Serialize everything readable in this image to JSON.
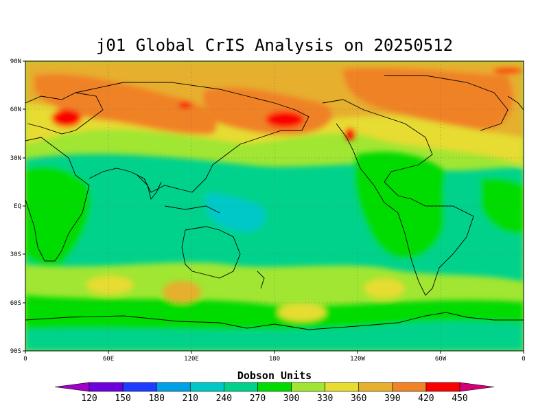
{
  "title": "j01 Global CrIS Analysis on 20250512",
  "units": "Dobson Units",
  "map": {
    "projection": "cylindrical-equidistant",
    "lon_range": [
      0,
      360
    ],
    "lat_range": [
      -90,
      90
    ],
    "lat_ticks": [
      "90N",
      "60N",
      "30N",
      "EQ",
      "30S",
      "60S",
      "90S"
    ],
    "lon_ticks": [
      "0",
      "60E",
      "120E",
      "180",
      "120W",
      "60W",
      "0"
    ],
    "grid": "dotted"
  },
  "colorbar": {
    "values": [
      "120",
      "150",
      "180",
      "210",
      "240",
      "270",
      "300",
      "330",
      "360",
      "390",
      "420",
      "450"
    ],
    "colors": [
      "#a000c8",
      "#6e00dc",
      "#1e3cff",
      "#00a0e6",
      "#00c8c8",
      "#00d28c",
      "#00dc00",
      "#a0e632",
      "#e6dc32",
      "#e6af2d",
      "#f08228",
      "#fa0000",
      "#d20078"
    ]
  },
  "field_colors": {
    "teal": "#00d28c",
    "cyan": "#00c8c8",
    "green": "#00dc00",
    "lime": "#a0e632",
    "yellow": "#e6dc32",
    "gold": "#e6af2d",
    "orange": "#f08228",
    "red": "#fa0000"
  }
}
